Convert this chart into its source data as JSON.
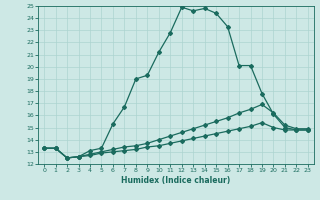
{
  "xlabel": "Humidex (Indice chaleur)",
  "xlim": [
    -0.5,
    23.5
  ],
  "ylim": [
    12,
    25
  ],
  "xticks": [
    0,
    1,
    2,
    3,
    4,
    5,
    6,
    7,
    8,
    9,
    10,
    11,
    12,
    13,
    14,
    15,
    16,
    17,
    18,
    19,
    20,
    21,
    22,
    23
  ],
  "yticks": [
    12,
    13,
    14,
    15,
    16,
    17,
    18,
    19,
    20,
    21,
    22,
    23,
    24,
    25
  ],
  "bg_color": "#cde8e5",
  "line_color": "#1a6b5e",
  "grid_color": "#add4d0",
  "line1_x": [
    0,
    1,
    2,
    3,
    4,
    5,
    6,
    7,
    8,
    9,
    10,
    11,
    12,
    13,
    14,
    15,
    16,
    17,
    18,
    19,
    20,
    21,
    22,
    23
  ],
  "line1_y": [
    13.3,
    13.3,
    12.5,
    12.6,
    13.1,
    13.3,
    15.3,
    16.7,
    19.0,
    19.3,
    21.2,
    22.8,
    24.9,
    24.6,
    24.8,
    24.4,
    23.3,
    20.1,
    20.1,
    17.8,
    16.1,
    15.0,
    14.8,
    14.8
  ],
  "line2_x": [
    0,
    1,
    2,
    3,
    4,
    5,
    6,
    7,
    8,
    9,
    10,
    11,
    12,
    13,
    14,
    15,
    16,
    17,
    18,
    19,
    20,
    21,
    22,
    23
  ],
  "line2_y": [
    13.3,
    13.3,
    12.5,
    12.6,
    12.8,
    13.0,
    13.2,
    13.4,
    13.5,
    13.7,
    14.0,
    14.3,
    14.6,
    14.9,
    15.2,
    15.5,
    15.8,
    16.2,
    16.5,
    16.9,
    16.2,
    15.2,
    14.9,
    14.9
  ],
  "line3_x": [
    0,
    1,
    2,
    3,
    4,
    5,
    6,
    7,
    8,
    9,
    10,
    11,
    12,
    13,
    14,
    15,
    16,
    17,
    18,
    19,
    20,
    21,
    22,
    23
  ],
  "line3_y": [
    13.3,
    13.3,
    12.5,
    12.6,
    12.7,
    12.9,
    13.0,
    13.1,
    13.2,
    13.4,
    13.5,
    13.7,
    13.9,
    14.1,
    14.3,
    14.5,
    14.7,
    14.9,
    15.1,
    15.4,
    15.0,
    14.8,
    14.8,
    14.8
  ]
}
